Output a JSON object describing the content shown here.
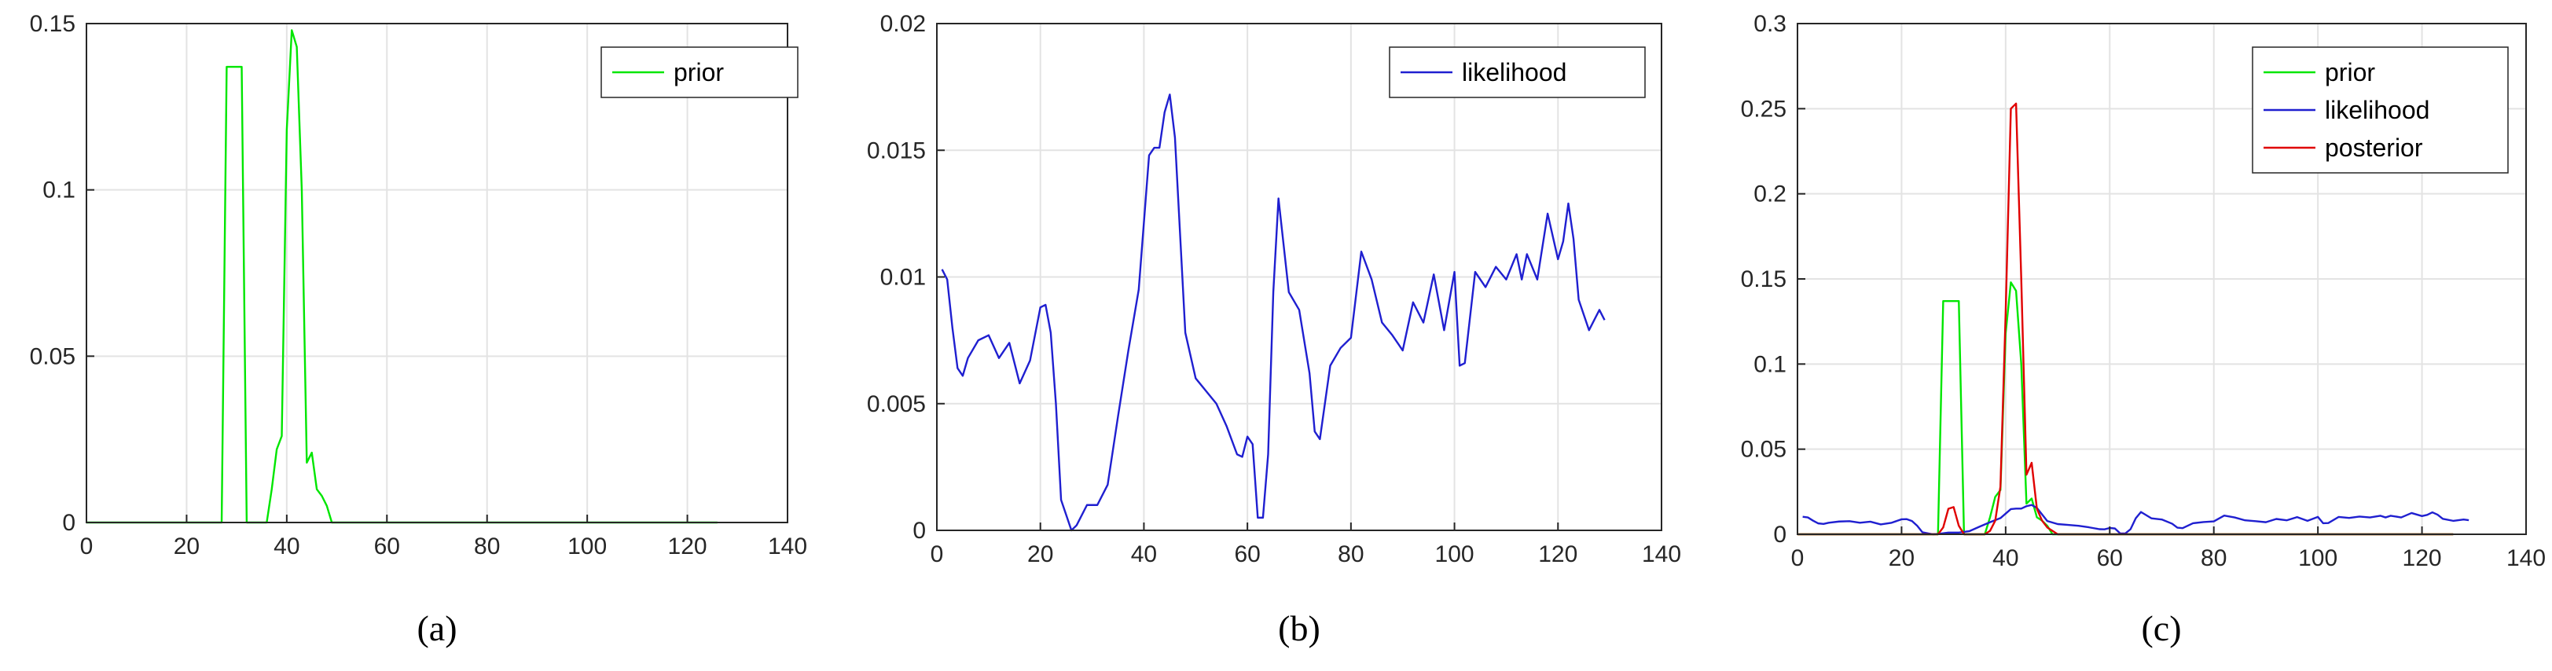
{
  "colors": {
    "prior": "#00e600",
    "likelihood": "#1f1fd0",
    "posterior": "#e00000",
    "grid": "#e3e3e3",
    "axis": "#262626"
  },
  "chart_data": [
    {
      "type": "line",
      "caption": "(a)",
      "xlim": [
        0,
        140
      ],
      "ylim": [
        0,
        0.15
      ],
      "xticks": [
        0,
        20,
        40,
        60,
        80,
        100,
        120,
        140
      ],
      "yticks": [
        0,
        0.05,
        0.1,
        0.15
      ],
      "xtick_labels": [
        "0",
        "20",
        "40",
        "60",
        "80",
        "100",
        "120",
        "140"
      ],
      "ytick_labels": [
        "0",
        "0.05",
        "0.1",
        "0.15"
      ],
      "grid": true,
      "legend_position": "top-right",
      "series": [
        {
          "name": "prior",
          "color_key": "prior",
          "x": [
            0,
            27,
            28,
            29,
            30,
            31,
            32,
            36,
            37,
            38,
            39,
            40,
            41,
            42,
            43,
            44,
            45,
            46,
            47,
            48,
            49,
            126
          ],
          "y": [
            0,
            0,
            0.137,
            0.137,
            0.137,
            0.137,
            0,
            0,
            0.01,
            0.022,
            0.026,
            0.118,
            0.148,
            0.143,
            0.1,
            0.018,
            0.021,
            0.01,
            0.008,
            0.005,
            0,
            0
          ]
        }
      ]
    },
    {
      "type": "line",
      "caption": "(b)",
      "xlim": [
        0,
        140
      ],
      "ylim": [
        0,
        0.02
      ],
      "xticks": [
        0,
        20,
        40,
        60,
        80,
        100,
        120,
        140
      ],
      "yticks": [
        0,
        0.005,
        0.01,
        0.015,
        0.02
      ],
      "xtick_labels": [
        "0",
        "20",
        "40",
        "60",
        "80",
        "100",
        "120",
        "140"
      ],
      "ytick_labels": [
        "0",
        "0.005",
        "0.01",
        "0.015",
        "0.02"
      ],
      "grid": true,
      "legend_position": "top-right",
      "series": [
        {
          "name": "likelihood",
          "color_key": "likelihood",
          "x": [
            1,
            2,
            3,
            4,
            5,
            6,
            8,
            10,
            12,
            14,
            16,
            18,
            20,
            21,
            22,
            23,
            24,
            26,
            27,
            29,
            31,
            33,
            35,
            37,
            39,
            41,
            42,
            43,
            44,
            45,
            46,
            48,
            50,
            52,
            54,
            56,
            58,
            59,
            60,
            61,
            62,
            63,
            64,
            65,
            66,
            68,
            70,
            72,
            73,
            74,
            76,
            78,
            80,
            82,
            84,
            86,
            88,
            90,
            92,
            94,
            96,
            98,
            100,
            101,
            102,
            104,
            106,
            108,
            110,
            112,
            113,
            114,
            116,
            118,
            120,
            121,
            122,
            123,
            124,
            126,
            128,
            129
          ],
          "y": [
            0.0103,
            0.0099,
            0.008,
            0.0064,
            0.0061,
            0.0068,
            0.0075,
            0.0077,
            0.0068,
            0.0074,
            0.0058,
            0.0067,
            0.0088,
            0.0089,
            0.0078,
            0.005,
            0.0012,
            0,
            0.0002,
            0.001,
            0.001,
            0.0018,
            0.0045,
            0.0071,
            0.0095,
            0.0148,
            0.0151,
            0.0151,
            0.0165,
            0.0172,
            0.0155,
            0.0078,
            0.006,
            0.0055,
            0.005,
            0.0041,
            0.003,
            0.0029,
            0.0037,
            0.0034,
            0.0005,
            0.0005,
            0.003,
            0.0094,
            0.0131,
            0.0094,
            0.0087,
            0.0062,
            0.0039,
            0.0036,
            0.0065,
            0.0072,
            0.0076,
            0.011,
            0.0099,
            0.0082,
            0.0077,
            0.0071,
            0.009,
            0.0082,
            0.0101,
            0.0079,
            0.0102,
            0.0065,
            0.0066,
            0.0102,
            0.0096,
            0.0104,
            0.0099,
            0.0109,
            0.0099,
            0.0109,
            0.0099,
            0.0125,
            0.0107,
            0.0114,
            0.0129,
            0.0115,
            0.0091,
            0.0079,
            0.0087,
            0.0083
          ]
        }
      ]
    },
    {
      "type": "line",
      "caption": "(c)",
      "xlim": [
        0,
        140
      ],
      "ylim": [
        0,
        0.3
      ],
      "xticks": [
        0,
        20,
        40,
        60,
        80,
        100,
        120,
        140
      ],
      "yticks": [
        0,
        0.05,
        0.1,
        0.15,
        0.2,
        0.25,
        0.3
      ],
      "xtick_labels": [
        "0",
        "20",
        "40",
        "60",
        "80",
        "100",
        "120",
        "140"
      ],
      "ytick_labels": [
        "0",
        "0.05",
        "0.1",
        "0.15",
        "0.2",
        "0.25",
        "0.3"
      ],
      "grid": true,
      "legend_position": "top-right",
      "series": [
        {
          "name": "prior",
          "color_key": "prior",
          "x": [
            0,
            27,
            28,
            29,
            30,
            31,
            32,
            36,
            37,
            38,
            39,
            40,
            41,
            42,
            43,
            44,
            45,
            46,
            47,
            48,
            49,
            126
          ],
          "y": [
            0,
            0,
            0.137,
            0.137,
            0.137,
            0.137,
            0,
            0,
            0.01,
            0.022,
            0.026,
            0.118,
            0.148,
            0.143,
            0.1,
            0.018,
            0.021,
            0.01,
            0.008,
            0.005,
            0,
            0
          ]
        },
        {
          "name": "likelihood",
          "color_key": "likelihood",
          "x": [
            1,
            2,
            3,
            4,
            5,
            6,
            8,
            10,
            12,
            14,
            16,
            18,
            20,
            21,
            22,
            23,
            24,
            26,
            27,
            29,
            31,
            33,
            35,
            37,
            39,
            41,
            42,
            43,
            44,
            45,
            46,
            48,
            50,
            52,
            54,
            56,
            58,
            59,
            60,
            61,
            62,
            63,
            64,
            65,
            66,
            68,
            70,
            72,
            73,
            74,
            76,
            78,
            80,
            82,
            84,
            86,
            88,
            90,
            92,
            94,
            96,
            98,
            100,
            101,
            102,
            104,
            106,
            108,
            110,
            112,
            113,
            114,
            116,
            118,
            120,
            121,
            122,
            123,
            124,
            126,
            128,
            129
          ],
          "y": [
            0.0103,
            0.0099,
            0.008,
            0.0064,
            0.0061,
            0.0068,
            0.0075,
            0.0077,
            0.0068,
            0.0074,
            0.0058,
            0.0067,
            0.0088,
            0.0089,
            0.0078,
            0.005,
            0.0012,
            0,
            0.0002,
            0.001,
            0.001,
            0.0018,
            0.0045,
            0.0071,
            0.0095,
            0.0148,
            0.0151,
            0.0151,
            0.0165,
            0.0172,
            0.0155,
            0.0078,
            0.006,
            0.0055,
            0.005,
            0.0041,
            0.003,
            0.0029,
            0.0037,
            0.0034,
            0.0005,
            0.0005,
            0.003,
            0.0094,
            0.0131,
            0.0094,
            0.0087,
            0.0062,
            0.0039,
            0.0036,
            0.0065,
            0.0072,
            0.0076,
            0.011,
            0.0099,
            0.0082,
            0.0077,
            0.0071,
            0.009,
            0.0082,
            0.0101,
            0.0079,
            0.0102,
            0.0065,
            0.0066,
            0.0102,
            0.0096,
            0.0104,
            0.0099,
            0.0109,
            0.0099,
            0.0109,
            0.0099,
            0.0125,
            0.0107,
            0.0114,
            0.0129,
            0.0115,
            0.0091,
            0.0079,
            0.0087,
            0.0083
          ]
        },
        {
          "name": "posterior",
          "color_key": "posterior",
          "x": [
            0,
            27,
            28,
            29,
            30,
            31,
            32,
            36,
            37,
            38,
            39,
            40,
            41,
            42,
            43,
            44,
            45,
            46,
            47,
            48,
            49,
            50,
            126
          ],
          "y": [
            0,
            0,
            0.004,
            0.015,
            0.016,
            0.005,
            0,
            0,
            0.002,
            0.008,
            0.028,
            0.13,
            0.25,
            0.253,
            0.15,
            0.035,
            0.042,
            0.015,
            0.008,
            0.004,
            0.002,
            0,
            0
          ]
        }
      ]
    }
  ]
}
